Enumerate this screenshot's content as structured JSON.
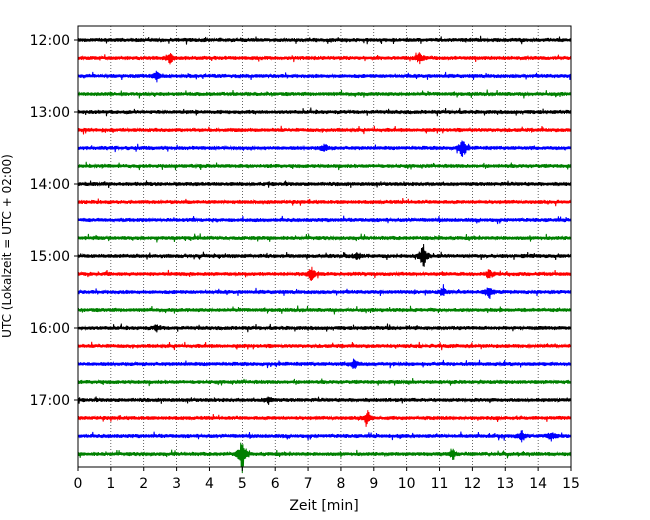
{
  "chart_data": {
    "type": "line",
    "title": "",
    "xlabel": "Zeit  [min]",
    "ylabel": "UTC (Lokalzeit = UTC + 02:00)",
    "xlim": [
      0,
      15
    ],
    "x_ticks": [
      0,
      1,
      2,
      3,
      4,
      5,
      6,
      7,
      8,
      9,
      10,
      11,
      12,
      13,
      14,
      15
    ],
    "y_tick_labels": [
      "12:00",
      "13:00",
      "14:00",
      "15:00",
      "16:00",
      "17:00"
    ],
    "grid": "vertical dotted",
    "colors": [
      "#000000",
      "#ff0000",
      "#0000ff",
      "#008000"
    ],
    "series": [
      {
        "start": "12:00",
        "color": "#000000"
      },
      {
        "start": "12:15",
        "color": "#ff0000"
      },
      {
        "start": "12:30",
        "color": "#0000ff"
      },
      {
        "start": "12:45",
        "color": "#008000"
      },
      {
        "start": "13:00",
        "color": "#000000"
      },
      {
        "start": "13:15",
        "color": "#ff0000"
      },
      {
        "start": "13:30",
        "color": "#0000ff"
      },
      {
        "start": "13:45",
        "color": "#008000"
      },
      {
        "start": "14:00",
        "color": "#000000"
      },
      {
        "start": "14:15",
        "color": "#ff0000"
      },
      {
        "start": "14:30",
        "color": "#0000ff"
      },
      {
        "start": "14:45",
        "color": "#008000"
      },
      {
        "start": "15:00",
        "color": "#000000"
      },
      {
        "start": "15:15",
        "color": "#ff0000"
      },
      {
        "start": "15:30",
        "color": "#0000ff"
      },
      {
        "start": "15:45",
        "color": "#008000"
      },
      {
        "start": "16:00",
        "color": "#000000"
      },
      {
        "start": "16:15",
        "color": "#ff0000"
      },
      {
        "start": "16:30",
        "color": "#0000ff"
      },
      {
        "start": "16:45",
        "color": "#008000"
      },
      {
        "start": "17:00",
        "color": "#000000"
      },
      {
        "start": "17:15",
        "color": "#ff0000"
      },
      {
        "start": "17:30",
        "color": "#0000ff"
      },
      {
        "start": "17:45",
        "color": "#008000"
      }
    ],
    "events": [
      {
        "trace": 1,
        "x": 2.8,
        "amp": 0.5
      },
      {
        "trace": 1,
        "x": 10.4,
        "amp": 0.5
      },
      {
        "trace": 2,
        "x": 2.4,
        "amp": 0.4
      },
      {
        "trace": 6,
        "x": 7.5,
        "amp": 0.4
      },
      {
        "trace": 6,
        "x": 11.7,
        "amp": 1.1
      },
      {
        "trace": 12,
        "x": 8.5,
        "amp": 0.4
      },
      {
        "trace": 12,
        "x": 10.5,
        "amp": 1.4
      },
      {
        "trace": 13,
        "x": 7.1,
        "amp": 0.7
      },
      {
        "trace": 13,
        "x": 12.5,
        "amp": 0.4
      },
      {
        "trace": 14,
        "x": 11.1,
        "amp": 0.4
      },
      {
        "trace": 14,
        "x": 12.5,
        "amp": 0.6
      },
      {
        "trace": 16,
        "x": 2.4,
        "amp": 0.3
      },
      {
        "trace": 18,
        "x": 8.4,
        "amp": 0.5
      },
      {
        "trace": 20,
        "x": 5.8,
        "amp": 0.3
      },
      {
        "trace": 21,
        "x": 8.8,
        "amp": 0.7
      },
      {
        "trace": 22,
        "x": 13.5,
        "amp": 0.5
      },
      {
        "trace": 22,
        "x": 14.4,
        "amp": 0.4
      },
      {
        "trace": 23,
        "x": 5.0,
        "amp": 1.8
      },
      {
        "trace": 23,
        "x": 11.4,
        "amp": 0.4
      }
    ]
  }
}
